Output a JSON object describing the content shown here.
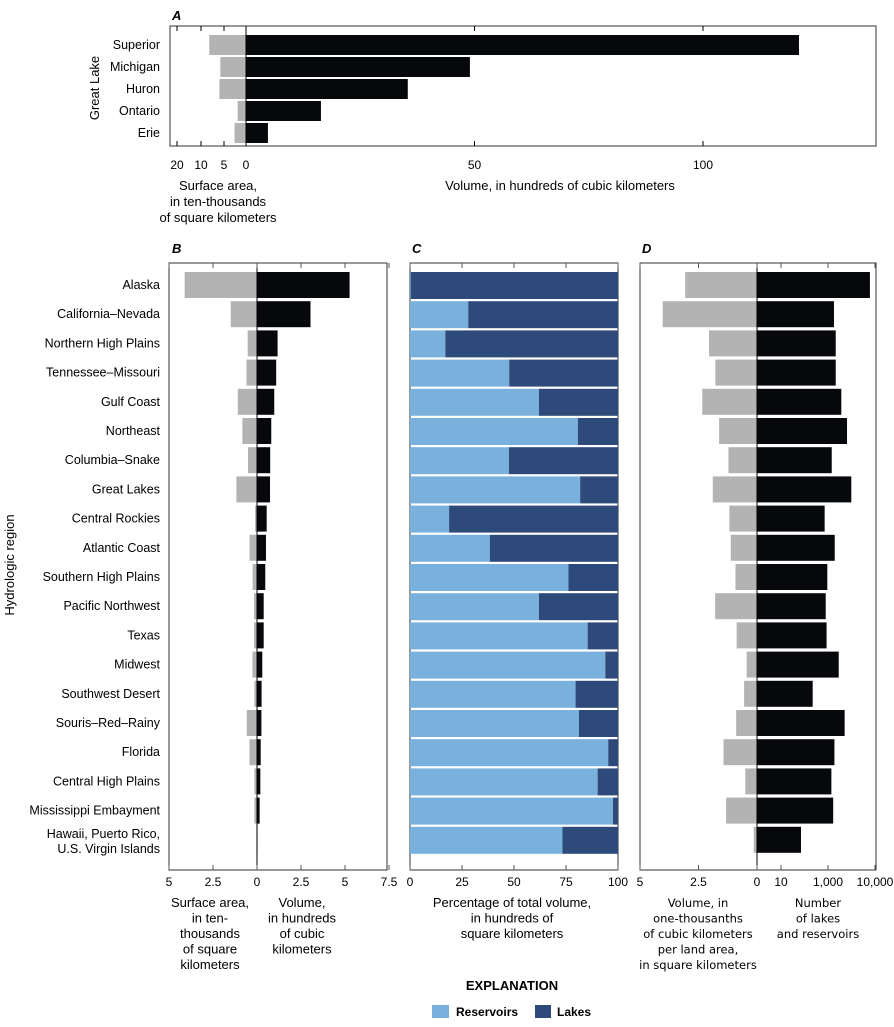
{
  "colors": {
    "volume": "#07080b",
    "area": "#b3b3b3",
    "reservoirs": "#7ab0dc",
    "lakes": "#2e4a7a"
  },
  "chart_data": [
    {
      "panel": "A",
      "type": "bar",
      "orientation": "horizontal-diverging",
      "ylabel": "Great Lake",
      "categories": [
        "Superior",
        "Michigan",
        "Huron",
        "Ontario",
        "Erie"
      ],
      "series": [
        {
          "name": "Surface area",
          "values": [
            8.2,
            5.8,
            6.0,
            1.9,
            2.6
          ]
        },
        {
          "name": "Volume",
          "values": [
            121,
            49,
            35.4,
            16.4,
            4.8
          ]
        }
      ],
      "left_axis": {
        "ticks": [
          "20",
          "10",
          "5",
          "0"
        ],
        "tick_values": [
          20,
          10,
          5,
          0
        ],
        "label": [
          "Surface area,",
          "in ten-thousands",
          "of square kilometers"
        ]
      },
      "right_axis": {
        "ticks": [
          "50",
          "100"
        ],
        "tick_values": [
          50,
          100
        ],
        "label": [
          "Volume, in hundreds of cubic kilometers"
        ],
        "range": [
          0,
          137
        ]
      }
    },
    {
      "panel": "B",
      "type": "bar",
      "orientation": "horizontal-diverging",
      "ylabel": "Hydrologic region",
      "categories": [
        "Alaska",
        "California–Nevada",
        "Northern High Plains",
        "Tennessee–Missouri",
        "Gulf Coast",
        "Northeast",
        "Columbia–Snake",
        "Great Lakes",
        "Central Rockies",
        "Atlantic Coast",
        "Southern High Plains",
        "Pacific Northwest",
        "Texas",
        "Midwest",
        "Southwest Desert",
        "Souris–Red–Rainy",
        "Florida",
        "Central High Plains",
        "Mississippi Embayment",
        "Hawaii, Puerto Rico, U.S. Virgin Islands"
      ],
      "series": [
        {
          "name": "Surface area",
          "values": [
            4.11,
            1.49,
            0.53,
            0.6,
            1.09,
            0.83,
            0.51,
            1.17,
            0.11,
            0.42,
            0.25,
            0.17,
            0.17,
            0.26,
            0.15,
            0.58,
            0.43,
            0.15,
            0.15,
            0.03
          ]
        },
        {
          "name": "Volume",
          "values": [
            5.26,
            3.04,
            1.17,
            1.09,
            0.98,
            0.81,
            0.75,
            0.74,
            0.55,
            0.51,
            0.47,
            0.38,
            0.38,
            0.3,
            0.26,
            0.25,
            0.21,
            0.19,
            0.15,
            0.03
          ]
        }
      ],
      "left_axis": {
        "ticks": [
          "5",
          "2.5"
        ],
        "tick_values": [
          5,
          2.5
        ],
        "label": [
          "Surface area,",
          "in ten-",
          "thousands",
          "of square",
          "kilometers"
        ]
      },
      "right_axis": {
        "ticks": [
          "0",
          "2.5",
          "5",
          "7.5"
        ],
        "tick_values": [
          0,
          2.5,
          5,
          7.5
        ],
        "label": [
          "Volume,",
          "in hundreds",
          "of cubic",
          "kilometers"
        ]
      }
    },
    {
      "panel": "C",
      "type": "bar",
      "orientation": "horizontal-stacked-percent",
      "series": [
        {
          "name": "Reservoirs",
          "values": [
            0.3,
            28,
            17,
            47.7,
            62,
            80.7,
            47.6,
            81.8,
            18.8,
            38.4,
            76.2,
            62,
            85.4,
            93.9,
            79.6,
            81.2,
            95.3,
            90.2,
            97.6,
            73.3
          ]
        },
        {
          "name": "Lakes",
          "values": [
            99.7,
            72,
            83,
            52.3,
            38,
            19.3,
            52.4,
            18.2,
            81.2,
            61.6,
            23.8,
            38,
            14.6,
            6.1,
            20.4,
            18.8,
            4.7,
            9.8,
            2.4,
            26.7
          ]
        }
      ],
      "axis": {
        "ticks": [
          "0",
          "25",
          "50",
          "75",
          "100"
        ],
        "tick_values": [
          0,
          25,
          50,
          75,
          100
        ],
        "label": [
          "Percentage of total volume,",
          "in hundreds of",
          "square kilometers"
        ]
      }
    },
    {
      "panel": "D",
      "type": "bar",
      "orientation": "horizontal-diverging",
      "series": [
        {
          "name": "Volume per land area",
          "values": [
            3.07,
            4.03,
            2.05,
            1.78,
            2.34,
            1.62,
            1.22,
            1.89,
            1.18,
            1.12,
            0.92,
            1.79,
            0.87,
            0.44,
            0.55,
            0.89,
            1.43,
            0.5,
            1.32,
            0.14
          ]
        },
        {
          "name": "Number of lakes and reservoirs",
          "values": [
            7800,
            1340,
            1460,
            1460,
            1920,
            2540,
            1200,
            3130,
            720,
            1390,
            935,
            800,
            870,
            1690,
            223,
            2260,
            1370,
            1180,
            1290,
            71
          ]
        }
      ],
      "left_axis": {
        "ticks": [
          "5",
          "2.5"
        ],
        "tick_values": [
          5,
          2.5
        ],
        "label": [
          "Volume, in",
          "one-thousanths",
          "of cubic kilometers",
          "per land area,",
          "in square kilometers"
        ]
      },
      "right_axis": {
        "ticks": [
          "0",
          "10",
          "1,000",
          "10,000"
        ],
        "tick_values": [
          1,
          10,
          1000,
          10000
        ],
        "scale": "log",
        "label": [
          "Number",
          "of lakes",
          "and reservoirs"
        ]
      }
    }
  ],
  "legend": {
    "title": "EXPLANATION",
    "items": [
      "Reservoirs",
      "Lakes"
    ]
  }
}
